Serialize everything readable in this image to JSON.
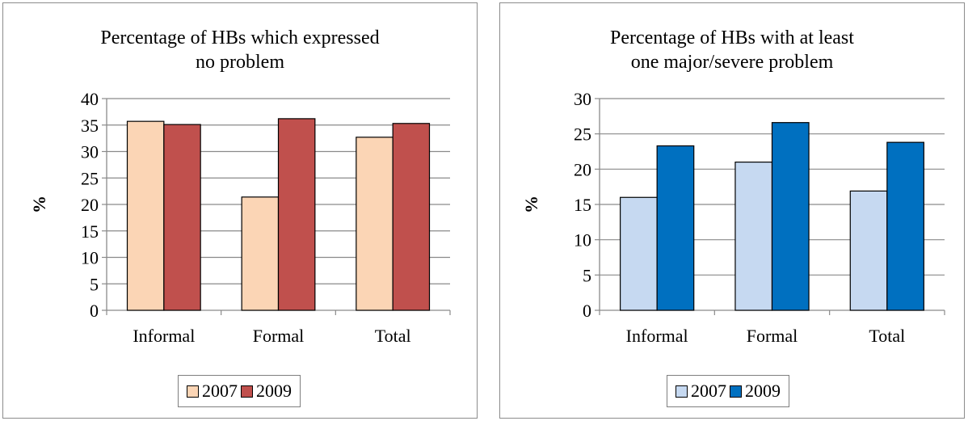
{
  "chart_data": [
    {
      "type": "bar",
      "title": "Percentage of HBs which expressed\nno problem",
      "ylabel": "%",
      "ylim": [
        0,
        40
      ],
      "yticks": [
        0,
        5,
        10,
        15,
        20,
        25,
        30,
        35,
        40
      ],
      "categories": [
        "Informal",
        "Formal",
        "Total"
      ],
      "series": [
        {
          "name": "2007",
          "values": [
            35.7,
            21.4,
            32.7
          ],
          "color": "#FBD5B5"
        },
        {
          "name": "2009",
          "values": [
            35.1,
            36.2,
            35.3
          ],
          "color": "#C0504D"
        }
      ],
      "grid": true,
      "legend": "bottom"
    },
    {
      "type": "bar",
      "title": "Percentage of HBs with at least\none major/severe problem",
      "ylabel": "%",
      "ylim": [
        0,
        30
      ],
      "yticks": [
        0,
        5,
        10,
        15,
        20,
        25,
        30
      ],
      "categories": [
        "Informal",
        "Formal",
        "Total"
      ],
      "series": [
        {
          "name": "2007",
          "values": [
            16.0,
            21.0,
            16.9
          ],
          "color": "#C6D9F1"
        },
        {
          "name": "2009",
          "values": [
            23.3,
            26.6,
            23.8
          ],
          "color": "#0070C0"
        }
      ],
      "grid": true,
      "legend": "bottom"
    }
  ]
}
